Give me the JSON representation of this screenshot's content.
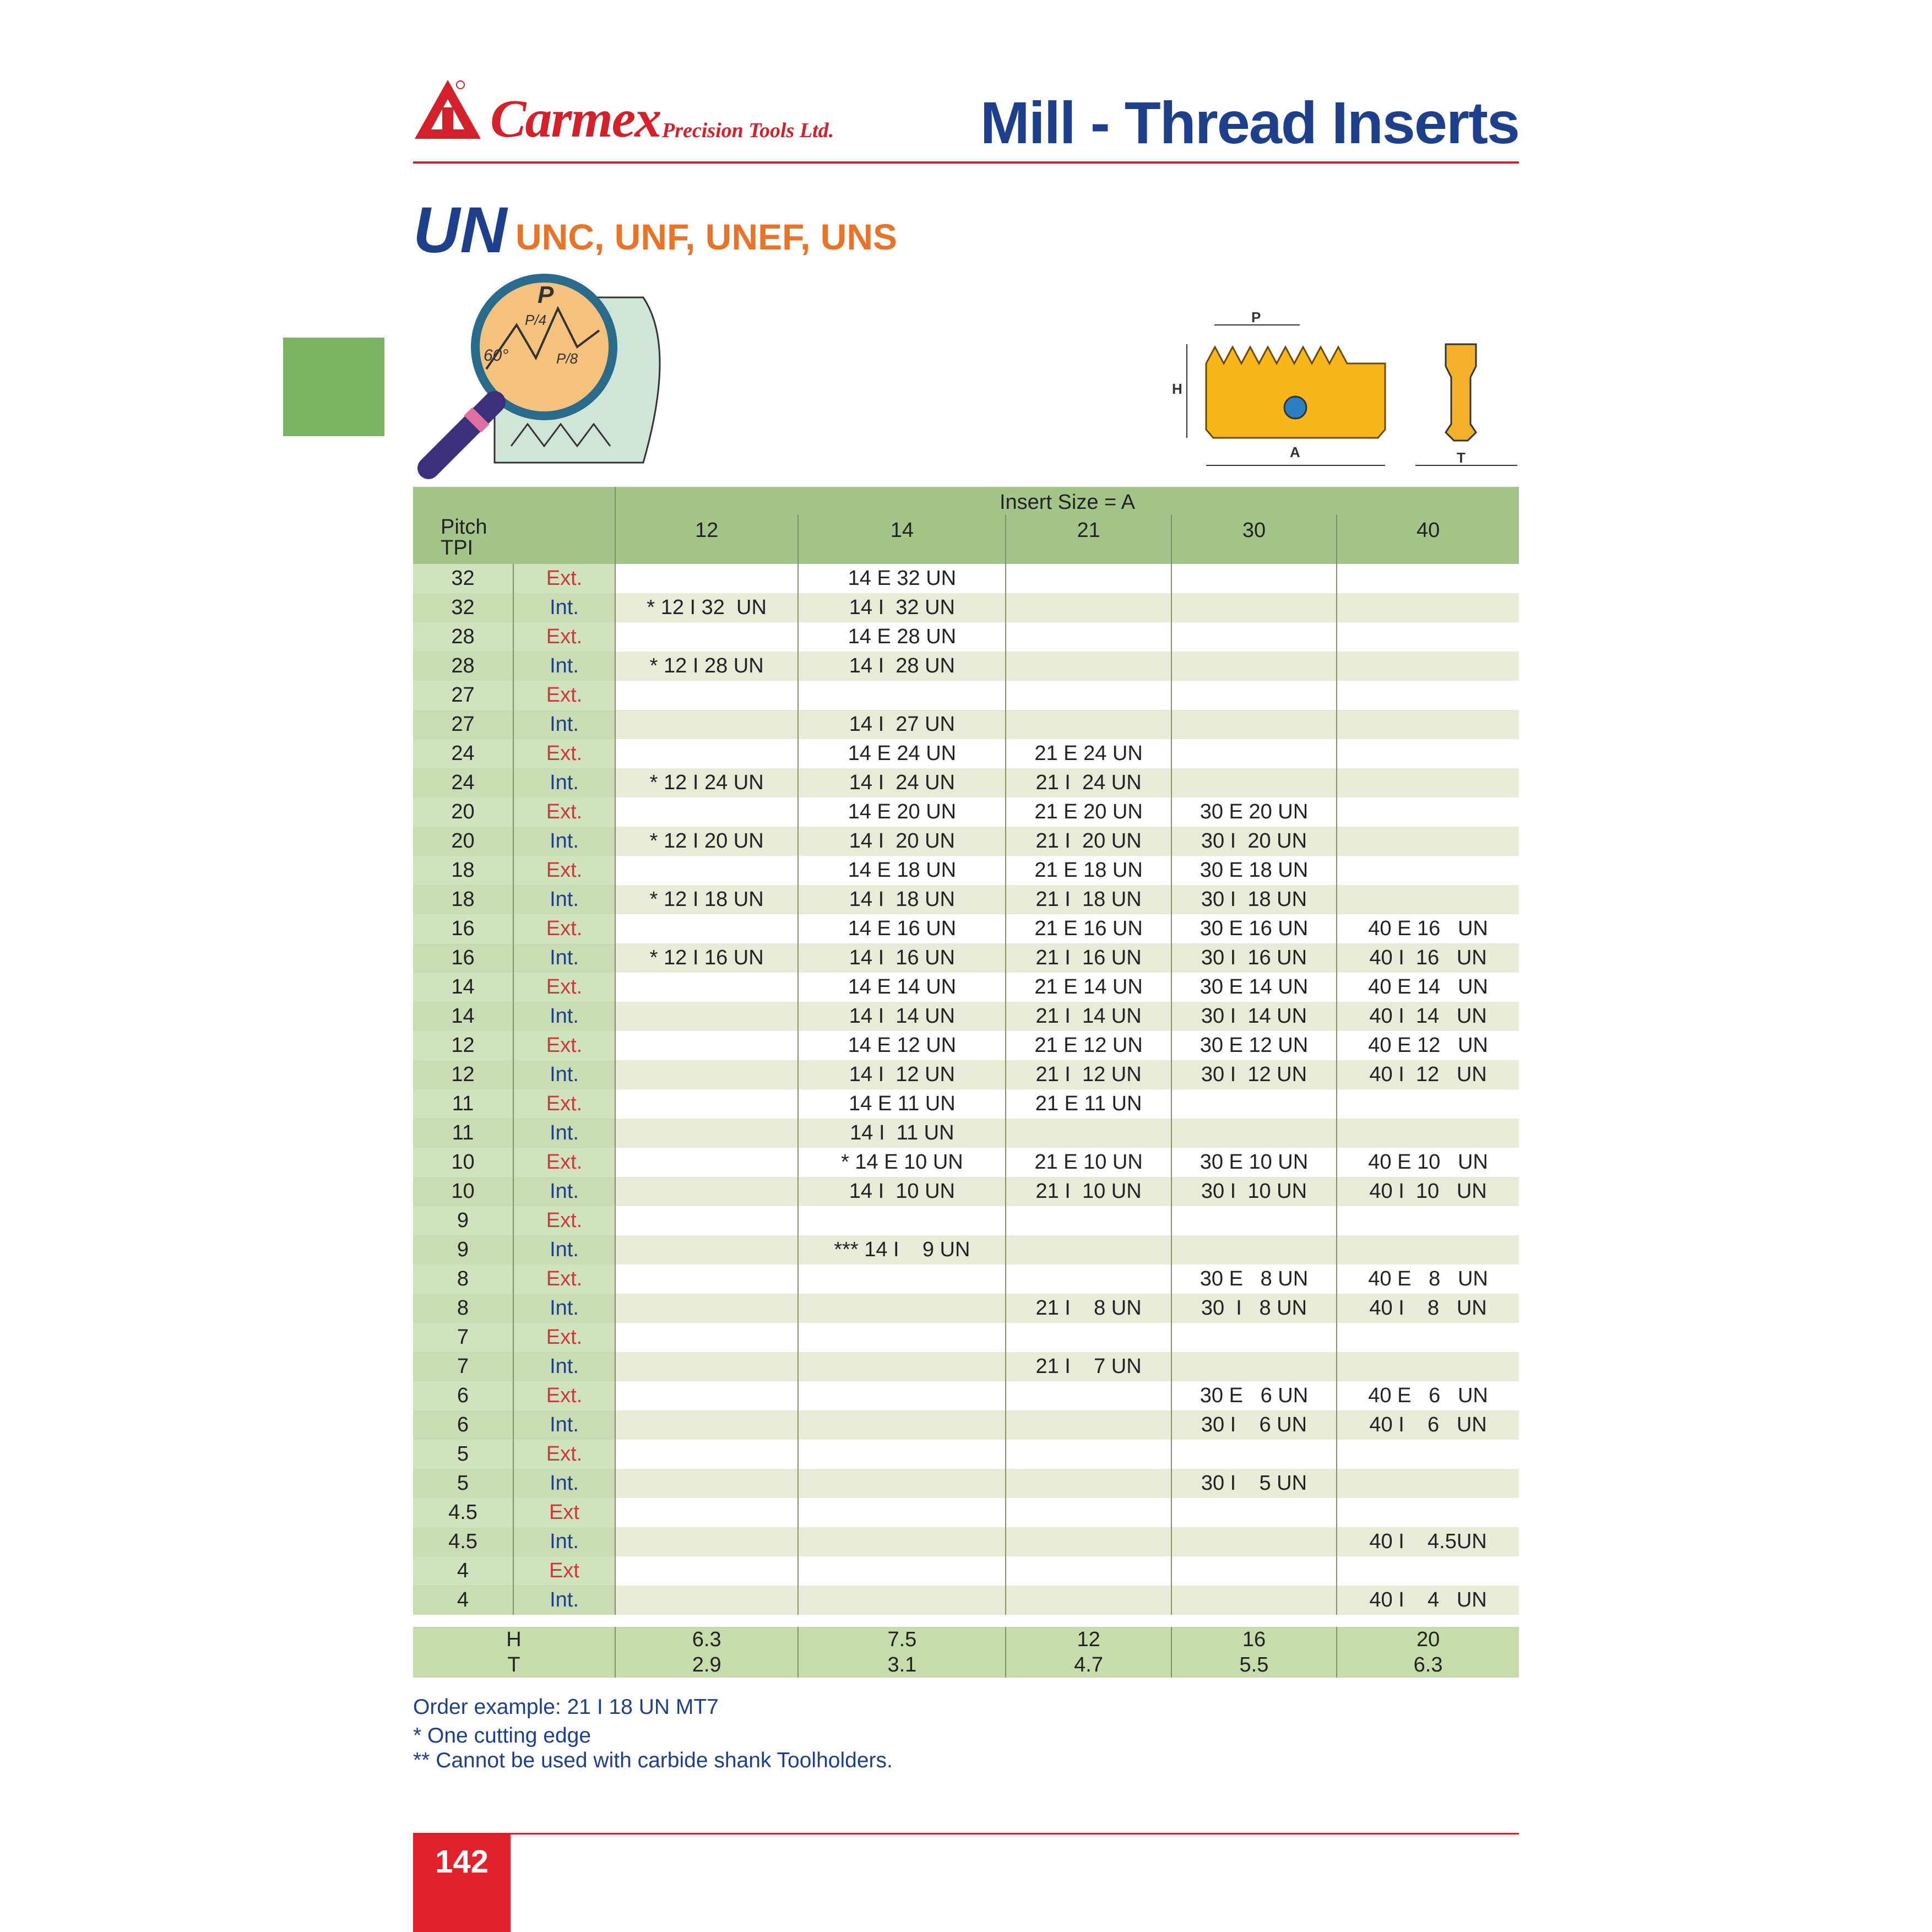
{
  "header": {
    "brand": "Carmex",
    "brand_sub": "Precision Tools Ltd.",
    "title": "Mill - Thread Inserts"
  },
  "section": {
    "title": "UN",
    "subtitle": "UNC, UNF, UNEF, UNS"
  },
  "diagram": {
    "thread_labels": [
      "P",
      "P/4",
      "P/8",
      "60°"
    ],
    "insert_labels": [
      "P",
      "H",
      "A",
      "T"
    ]
  },
  "colors": {
    "brand_red": "#d3202a",
    "title_blue": "#1d3f8c",
    "accent_orange": "#e8742a",
    "table_green": "#a3c58a",
    "tab_green": "#7bb462"
  },
  "table": {
    "pitch_header": "Pitch\nTPI",
    "insert_size_header": "Insert Size = A",
    "sizes": [
      "12",
      "14",
      "21",
      "30",
      "40"
    ],
    "rows": [
      {
        "tpi": "32",
        "type": "Ext.",
        "cells": [
          "",
          "14 E 32 UN",
          "",
          "",
          ""
        ]
      },
      {
        "tpi": "32",
        "type": "Int.",
        "cells": [
          "* 12 I 32  UN",
          "14 I  32 UN",
          "",
          "",
          ""
        ]
      },
      {
        "tpi": "28",
        "type": "Ext.",
        "cells": [
          "",
          "14 E 28 UN",
          "",
          "",
          ""
        ]
      },
      {
        "tpi": "28",
        "type": "Int.",
        "cells": [
          "* 12 I 28 UN",
          "14 I  28 UN",
          "",
          "",
          ""
        ]
      },
      {
        "tpi": "27",
        "type": "Ext.",
        "cells": [
          "",
          "",
          "",
          "",
          ""
        ]
      },
      {
        "tpi": "27",
        "type": "Int.",
        "cells": [
          "",
          "14 I  27 UN",
          "",
          "",
          ""
        ]
      },
      {
        "tpi": "24",
        "type": "Ext.",
        "cells": [
          "",
          "14 E 24 UN",
          "21 E 24 UN",
          "",
          ""
        ]
      },
      {
        "tpi": "24",
        "type": "Int.",
        "cells": [
          "* 12 I 24 UN",
          "14 I  24 UN",
          "21 I  24 UN",
          "",
          ""
        ]
      },
      {
        "tpi": "20",
        "type": "Ext.",
        "cells": [
          "",
          "14 E 20 UN",
          "21 E 20 UN",
          "30 E 20 UN",
          ""
        ]
      },
      {
        "tpi": "20",
        "type": "Int.",
        "cells": [
          "* 12 I 20 UN",
          "14 I  20 UN",
          "21 I  20 UN",
          "30 I  20 UN",
          ""
        ]
      },
      {
        "tpi": "18",
        "type": "Ext.",
        "cells": [
          "",
          "14 E 18 UN",
          "21 E 18 UN",
          "30 E 18 UN",
          ""
        ]
      },
      {
        "tpi": "18",
        "type": "Int.",
        "cells": [
          "* 12 I 18 UN",
          "14 I  18 UN",
          "21 I  18 UN",
          "30 I  18 UN",
          ""
        ]
      },
      {
        "tpi": "16",
        "type": "Ext.",
        "cells": [
          "",
          "14 E 16 UN",
          "21 E 16 UN",
          "30 E 16 UN",
          "40 E 16   UN"
        ]
      },
      {
        "tpi": "16",
        "type": "Int.",
        "cells": [
          "* 12 I 16 UN",
          "14 I  16 UN",
          "21 I  16 UN",
          "30 I  16 UN",
          "40 I  16   UN"
        ]
      },
      {
        "tpi": "14",
        "type": "Ext.",
        "cells": [
          "",
          "14 E 14 UN",
          "21 E 14 UN",
          "30 E 14 UN",
          "40 E 14   UN"
        ]
      },
      {
        "tpi": "14",
        "type": "Int.",
        "cells": [
          "",
          "14 I  14 UN",
          "21 I  14 UN",
          "30 I  14 UN",
          "40 I  14   UN"
        ]
      },
      {
        "tpi": "12",
        "type": "Ext.",
        "cells": [
          "",
          "14 E 12 UN",
          "21 E 12 UN",
          "30 E 12 UN",
          "40 E 12   UN"
        ]
      },
      {
        "tpi": "12",
        "type": "Int.",
        "cells": [
          "",
          "14 I  12 UN",
          "21 I  12 UN",
          "30 I  12 UN",
          "40 I  12   UN"
        ]
      },
      {
        "tpi": "11",
        "type": "Ext.",
        "cells": [
          "",
          "14 E 11 UN",
          "21 E 11 UN",
          "",
          ""
        ]
      },
      {
        "tpi": "11",
        "type": "Int.",
        "cells": [
          "",
          "14 I  11 UN",
          "",
          "",
          ""
        ]
      },
      {
        "tpi": "10",
        "type": "Ext.",
        "cells": [
          "",
          "* 14 E 10 UN",
          "21 E 10 UN",
          "30 E 10 UN",
          "40 E 10   UN"
        ]
      },
      {
        "tpi": "10",
        "type": "Int.",
        "cells": [
          "",
          "14 I  10 UN",
          "21 I  10 UN",
          "30 I  10 UN",
          "40 I  10   UN"
        ]
      },
      {
        "tpi": "9",
        "type": "Ext.",
        "cells": [
          "",
          "",
          "",
          "",
          ""
        ]
      },
      {
        "tpi": "9",
        "type": "Int.",
        "cells": [
          "",
          "*** 14 I    9 UN",
          "",
          "",
          ""
        ]
      },
      {
        "tpi": "8",
        "type": "Ext.",
        "cells": [
          "",
          "",
          "",
          "30 E   8 UN",
          "40 E   8   UN"
        ]
      },
      {
        "tpi": "8",
        "type": "Int.",
        "cells": [
          "",
          "",
          "21 I    8 UN",
          "30  I   8 UN",
          "40 I    8   UN"
        ]
      },
      {
        "tpi": "7",
        "type": "Ext.",
        "cells": [
          "",
          "",
          "",
          "",
          ""
        ]
      },
      {
        "tpi": "7",
        "type": "Int.",
        "cells": [
          "",
          "",
          "21 I    7 UN",
          "",
          ""
        ]
      },
      {
        "tpi": "6",
        "type": "Ext.",
        "cells": [
          "",
          "",
          "",
          "30 E   6 UN",
          "40 E   6   UN"
        ]
      },
      {
        "tpi": "6",
        "type": "Int.",
        "cells": [
          "",
          "",
          "",
          "30 I    6 UN",
          "40 I    6   UN"
        ]
      },
      {
        "tpi": "5",
        "type": "Ext.",
        "cells": [
          "",
          "",
          "",
          "",
          ""
        ]
      },
      {
        "tpi": "5",
        "type": "Int.",
        "cells": [
          "",
          "",
          "",
          "30 I    5 UN",
          ""
        ]
      },
      {
        "tpi": "4.5",
        "type": "Ext",
        "cells": [
          "",
          "",
          "",
          "",
          ""
        ]
      },
      {
        "tpi": "4.5",
        "type": "Int.",
        "cells": [
          "",
          "",
          "",
          "",
          "40 I    4.5UN"
        ]
      },
      {
        "tpi": "4",
        "type": "Ext",
        "cells": [
          "",
          "",
          "",
          "",
          ""
        ]
      },
      {
        "tpi": "4",
        "type": "Int.",
        "cells": [
          "",
          "",
          "",
          "",
          "40 I    4   UN"
        ]
      }
    ],
    "footer": {
      "labels": "H\nT",
      "values": [
        "6.3\n2.9",
        "7.5\n3.1",
        "12\n4.7",
        "16\n5.5",
        "20\n6.3"
      ]
    }
  },
  "notes": {
    "order_example": "Order example: 21 I 18 UN MT7",
    "note1": "* One cutting edge",
    "note2": "** Cannot be used with carbide shank Toolholders."
  },
  "page_number": "142"
}
